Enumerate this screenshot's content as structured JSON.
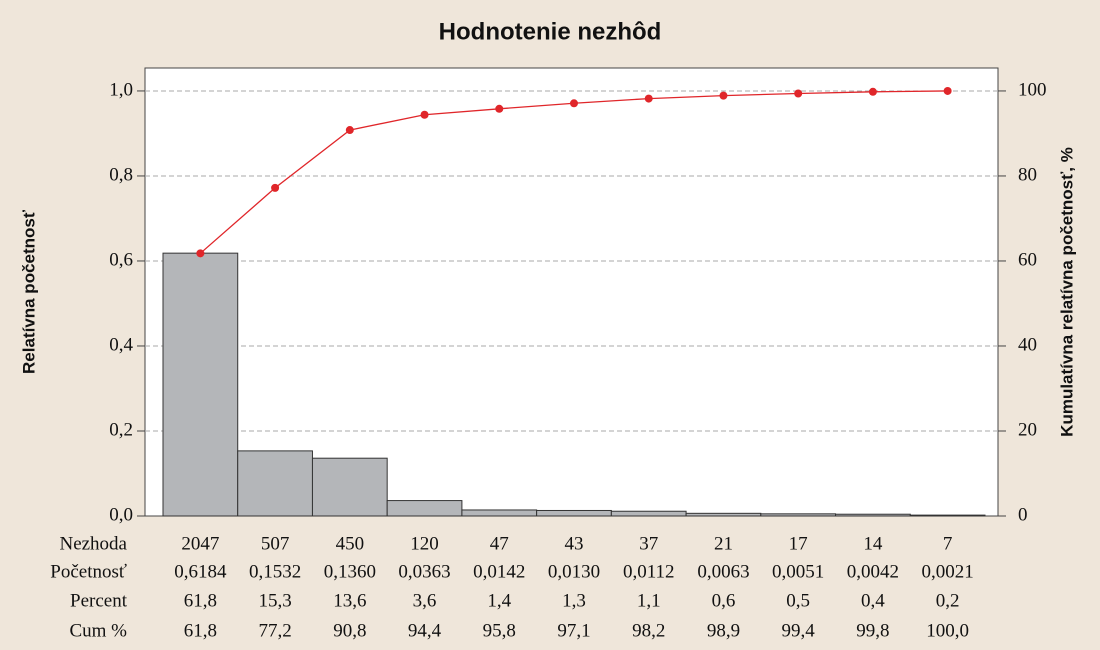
{
  "chart_data": {
    "type": "pareto",
    "title": "Hodnotenie nezhôd",
    "y_label": "Relatívna početnosť",
    "y2_label": "Kumulatívna relatívna početnosť, %",
    "categories_label": "Nezhoda",
    "categories": [
      "2047",
      "507",
      "450",
      "120",
      "47",
      "43",
      "37",
      "21",
      "17",
      "14",
      "7"
    ],
    "series": [
      {
        "name": "Početnosť",
        "color": "#b4b6b9",
        "values": [
          0.6184,
          0.1532,
          0.136,
          0.0363,
          0.0142,
          0.013,
          0.0112,
          0.0063,
          0.0051,
          0.0042,
          0.0021
        ],
        "value_labels": [
          "0,6184",
          "0,1532",
          "0,1360",
          "0,0363",
          "0,0142",
          "0,0130",
          "0,0112",
          "0,0063",
          "0,0051",
          "0,0042",
          "0,0021"
        ]
      },
      {
        "name": "Cum %",
        "color": "#e0262a",
        "axis": "y2",
        "values": [
          61.8,
          77.2,
          90.8,
          94.4,
          95.8,
          97.1,
          98.2,
          98.9,
          99.4,
          99.8,
          100.0
        ],
        "value_labels": [
          "61,8",
          "77,2",
          "90,8",
          "94,4",
          "95,8",
          "97,1",
          "98,2",
          "98,9",
          "99,4",
          "99,8",
          "100,0"
        ]
      }
    ],
    "percent": {
      "name": "Percent",
      "values": [
        61.8,
        15.3,
        13.6,
        3.6,
        1.4,
        1.3,
        1.1,
        0.6,
        0.5,
        0.4,
        0.2
      ],
      "value_labels": [
        "61,8",
        "15,3",
        "13,6",
        "3,6",
        "1,4",
        "1,3",
        "1,1",
        "0,6",
        "0,5",
        "0,4",
        "0,2"
      ]
    },
    "ylim": [
      0,
      1.054
    ],
    "yticks": [
      {
        "value": 0,
        "label": "0,0"
      },
      {
        "value": 0.2,
        "label": "0,2"
      },
      {
        "value": 0.4,
        "label": "0,4"
      },
      {
        "value": 0.6,
        "label": "0,6"
      },
      {
        "value": 0.8,
        "label": "0,8"
      },
      {
        "value": 1,
        "label": "1,0"
      }
    ],
    "y2lim": [
      0,
      105.4
    ],
    "y2ticks": [
      0,
      20,
      40,
      60,
      80,
      100
    ],
    "grid": true
  }
}
